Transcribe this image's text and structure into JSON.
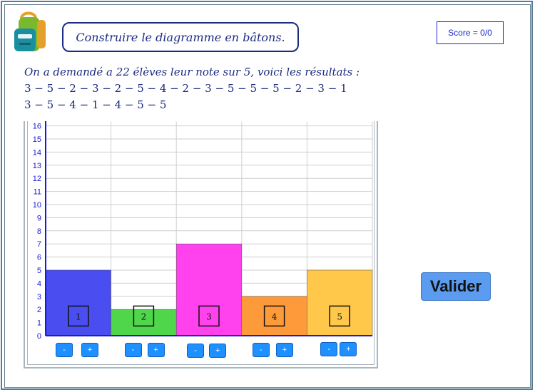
{
  "header": {
    "title": "Construire le diagramme en bâtons.",
    "score": "Score = 0/0",
    "logo_icon": "school-backpack-icon"
  },
  "statement": {
    "question": "On a demandé a 22 élèves leur note sur 5, voici les résultats :",
    "results_line1": "3 − 5 − 2 − 3 − 2 − 5 − 4 − 2 − 3 − 5 − 5 − 5 − 2 − 3 − 1",
    "results_line2": "3 − 5 − 4 − 1 − 4 − 5 − 5"
  },
  "chart_data": {
    "type": "bar",
    "categories": [
      "1",
      "2",
      "3",
      "4",
      "5"
    ],
    "values": [
      5,
      2,
      7,
      3,
      5
    ],
    "colors": [
      "#4a4df0",
      "#4fd64a",
      "#ff42ee",
      "#ff9a3a",
      "#ffc84a"
    ],
    "ylim": [
      0,
      16
    ],
    "yticks": [
      "0",
      "1",
      "2",
      "3",
      "4",
      "5",
      "6",
      "7",
      "8",
      "9",
      "10",
      "11",
      "12",
      "13",
      "14",
      "15",
      "16"
    ],
    "grid": true,
    "axis_color": "#1a1ad6"
  },
  "controls": {
    "minus_label": "-",
    "plus_label": "+",
    "validate_label": "Valider"
  }
}
